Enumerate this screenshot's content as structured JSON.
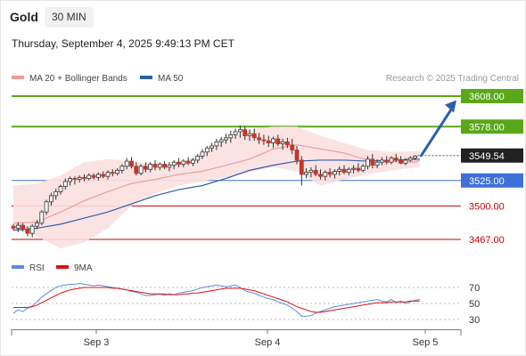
{
  "header": {
    "symbol": "Gold",
    "timeframe": "30 MIN",
    "datetime": "Thursday, September 4, 2025 9:49:13 PM CET"
  },
  "copyright": "Research © 2025 Trading Central",
  "colors": {
    "candle_up": "#ffffff",
    "candle_down": "#c0392b",
    "candle_wick": "#333333",
    "ma20": "#f29a9a",
    "bands_fill": "#fbe0e0",
    "ma50": "#2d5fa8",
    "resistance": "#5aa719",
    "support": "#3f6fd8",
    "pivot": "#cc0000",
    "arrow": "#2d5fa8",
    "rsi": "#5b8ee0",
    "rsi_ma": "#dd1111",
    "last_price_bg": "#222222"
  },
  "chart_data": [
    {
      "type": "candlestick",
      "title": "Gold 30 MIN",
      "legend": [
        {
          "name": "MA 20 + Bollinger Bands",
          "color": "#f29a9a"
        },
        {
          "name": "MA 50",
          "color": "#2d5fa8"
        }
      ],
      "legend_placement": "top-left",
      "x_ticks": [
        "Sep 3",
        "Sep 4",
        "Sep 5"
      ],
      "ylim": [
        3450,
        3620
      ],
      "last_price": 3549.54,
      "levels": [
        {
          "value": 3608.0,
          "label": "3608.00",
          "kind": "resistance"
        },
        {
          "value": 3578.0,
          "label": "3578.00",
          "kind": "resistance"
        },
        {
          "value": 3525.0,
          "label": "3525.00",
          "kind": "support"
        },
        {
          "value": 3500.0,
          "label": "3500.00",
          "kind": "pivot"
        },
        {
          "value": 3467.0,
          "label": "3467.00",
          "kind": "pivot"
        }
      ],
      "forecast_arrow": {
        "from": 3549.5,
        "to": 3604
      },
      "candles": [
        [
          3480,
          3482,
          3476,
          3478
        ],
        [
          3478,
          3484,
          3474,
          3481
        ],
        [
          3481,
          3483,
          3475,
          3477
        ],
        [
          3477,
          3480,
          3470,
          3473
        ],
        [
          3473,
          3482,
          3469,
          3480
        ],
        [
          3480,
          3486,
          3477,
          3483
        ],
        [
          3483,
          3496,
          3481,
          3494
        ],
        [
          3494,
          3506,
          3491,
          3504
        ],
        [
          3504,
          3513,
          3500,
          3510
        ],
        [
          3510,
          3517,
          3506,
          3514
        ],
        [
          3514,
          3521,
          3511,
          3519
        ],
        [
          3519,
          3527,
          3516,
          3524
        ],
        [
          3524,
          3529,
          3520,
          3527
        ],
        [
          3527,
          3529,
          3521,
          3526
        ],
        [
          3526,
          3530,
          3523,
          3528
        ],
        [
          3528,
          3531,
          3524,
          3527
        ],
        [
          3527,
          3532,
          3525,
          3530
        ],
        [
          3530,
          3532,
          3526,
          3528
        ],
        [
          3528,
          3533,
          3525,
          3531
        ],
        [
          3531,
          3534,
          3527,
          3529
        ],
        [
          3529,
          3535,
          3526,
          3533
        ],
        [
          3533,
          3536,
          3529,
          3532
        ],
        [
          3532,
          3537,
          3530,
          3535
        ],
        [
          3535,
          3541,
          3532,
          3539
        ],
        [
          3539,
          3547,
          3536,
          3544
        ],
        [
          3544,
          3548,
          3537,
          3539
        ],
        [
          3539,
          3543,
          3530,
          3532
        ],
        [
          3532,
          3541,
          3530,
          3539
        ],
        [
          3539,
          3543,
          3533,
          3536
        ],
        [
          3536,
          3543,
          3533,
          3541
        ],
        [
          3541,
          3545,
          3535,
          3538
        ],
        [
          3538,
          3543,
          3535,
          3541
        ],
        [
          3541,
          3544,
          3536,
          3538
        ],
        [
          3538,
          3543,
          3534,
          3540
        ],
        [
          3540,
          3545,
          3536,
          3543
        ],
        [
          3543,
          3547,
          3538,
          3541
        ],
        [
          3541,
          3546,
          3538,
          3544
        ],
        [
          3544,
          3548,
          3540,
          3542
        ],
        [
          3542,
          3547,
          3539,
          3545
        ],
        [
          3545,
          3551,
          3542,
          3549
        ],
        [
          3549,
          3556,
          3546,
          3553
        ],
        [
          3553,
          3559,
          3549,
          3557
        ],
        [
          3557,
          3562,
          3553,
          3559
        ],
        [
          3559,
          3566,
          3555,
          3563
        ],
        [
          3563,
          3568,
          3558,
          3565
        ],
        [
          3565,
          3571,
          3561,
          3567
        ],
        [
          3567,
          3574,
          3562,
          3570
        ],
        [
          3570,
          3576,
          3566,
          3573
        ],
        [
          3573,
          3579,
          3567,
          3575
        ],
        [
          3575,
          3578,
          3565,
          3569
        ],
        [
          3569,
          3575,
          3564,
          3571
        ],
        [
          3571,
          3576,
          3564,
          3567
        ],
        [
          3567,
          3572,
          3561,
          3565
        ],
        [
          3565,
          3570,
          3560,
          3564
        ],
        [
          3564,
          3569,
          3558,
          3562
        ],
        [
          3562,
          3568,
          3557,
          3566
        ],
        [
          3566,
          3570,
          3559,
          3561
        ],
        [
          3561,
          3566,
          3555,
          3563
        ],
        [
          3563,
          3567,
          3557,
          3560
        ],
        [
          3560,
          3566,
          3551,
          3555
        ],
        [
          3555,
          3559,
          3541,
          3545
        ],
        [
          3545,
          3549,
          3520,
          3531
        ],
        [
          3531,
          3537,
          3527,
          3533
        ],
        [
          3533,
          3538,
          3528,
          3535
        ],
        [
          3535,
          3540,
          3529,
          3531
        ],
        [
          3531,
          3536,
          3526,
          3529
        ],
        [
          3529,
          3535,
          3525,
          3533
        ],
        [
          3533,
          3537,
          3528,
          3531
        ],
        [
          3531,
          3536,
          3527,
          3534
        ],
        [
          3534,
          3539,
          3530,
          3536
        ],
        [
          3536,
          3540,
          3531,
          3533
        ],
        [
          3533,
          3538,
          3530,
          3536
        ],
        [
          3536,
          3540,
          3532,
          3537
        ],
        [
          3537,
          3542,
          3533,
          3535
        ],
        [
          3535,
          3541,
          3533,
          3539
        ],
        [
          3539,
          3549,
          3536,
          3546
        ],
        [
          3546,
          3551,
          3537,
          3540
        ],
        [
          3540,
          3546,
          3537,
          3543
        ],
        [
          3543,
          3548,
          3540,
          3545
        ],
        [
          3545,
          3549,
          3541,
          3543
        ],
        [
          3543,
          3549,
          3541,
          3547
        ],
        [
          3547,
          3551,
          3543,
          3545
        ],
        [
          3545,
          3549,
          3541,
          3542
        ],
        [
          3542,
          3547,
          3540,
          3545
        ],
        [
          3545,
          3549,
          3543,
          3547
        ],
        [
          3547,
          3550,
          3545,
          3549
        ]
      ],
      "ma20": [
        [
          0,
          3483
        ],
        [
          5,
          3484
        ],
        [
          10,
          3494
        ],
        [
          15,
          3505
        ],
        [
          20,
          3514
        ],
        [
          25,
          3522
        ],
        [
          30,
          3526
        ],
        [
          35,
          3531
        ],
        [
          40,
          3534
        ],
        [
          45,
          3540
        ],
        [
          50,
          3546
        ],
        [
          55,
          3556
        ],
        [
          60,
          3560
        ],
        [
          65,
          3556
        ],
        [
          70,
          3552
        ],
        [
          75,
          3545
        ],
        [
          80,
          3544
        ],
        [
          85,
          3543
        ],
        [
          86,
          3545
        ]
      ],
      "bollinger_upper": [
        [
          0,
          3520
        ],
        [
          5,
          3522
        ],
        [
          10,
          3530
        ],
        [
          15,
          3543
        ],
        [
          20,
          3546
        ],
        [
          25,
          3544
        ],
        [
          30,
          3540
        ],
        [
          35,
          3542
        ],
        [
          40,
          3552
        ],
        [
          45,
          3565
        ],
        [
          50,
          3575
        ],
        [
          55,
          3578
        ],
        [
          60,
          3578
        ],
        [
          65,
          3569
        ],
        [
          70,
          3562
        ],
        [
          75,
          3555
        ],
        [
          80,
          3553
        ],
        [
          86,
          3554
        ]
      ],
      "bollinger_lower": [
        [
          0,
          3478
        ],
        [
          5,
          3470
        ],
        [
          10,
          3458
        ],
        [
          15,
          3464
        ],
        [
          20,
          3478
        ],
        [
          25,
          3500
        ],
        [
          30,
          3512
        ],
        [
          35,
          3520
        ],
        [
          40,
          3524
        ],
        [
          45,
          3528
        ],
        [
          50,
          3533
        ],
        [
          55,
          3538
        ],
        [
          60,
          3534
        ],
        [
          65,
          3520
        ],
        [
          70,
          3526
        ],
        [
          75,
          3531
        ],
        [
          80,
          3535
        ],
        [
          86,
          3538
        ]
      ],
      "ma50": [
        [
          0,
          3476
        ],
        [
          5,
          3478
        ],
        [
          10,
          3482
        ],
        [
          15,
          3488
        ],
        [
          20,
          3494
        ],
        [
          25,
          3502
        ],
        [
          30,
          3510
        ],
        [
          35,
          3516
        ],
        [
          40,
          3520
        ],
        [
          45,
          3527
        ],
        [
          50,
          3535
        ],
        [
          55,
          3540
        ],
        [
          60,
          3544
        ],
        [
          65,
          3545
        ],
        [
          70,
          3545
        ],
        [
          75,
          3544
        ],
        [
          80,
          3545
        ],
        [
          86,
          3546
        ]
      ]
    },
    {
      "type": "line",
      "title": "RSI",
      "legend": [
        {
          "name": "RSI",
          "color": "#5b8ee0"
        },
        {
          "name": "9MA",
          "color": "#dd1111"
        }
      ],
      "legend_placement": "top-left",
      "ylim": [
        20,
        80
      ],
      "y_ticks": [
        30,
        50,
        70
      ],
      "series": [
        {
          "name": "RSI",
          "values": [
            38,
            42,
            40,
            44,
            47,
            52,
            58,
            62,
            66,
            70,
            72,
            73,
            74,
            74,
            75,
            74,
            73,
            72,
            73,
            72,
            71,
            70,
            69,
            68,
            67,
            65,
            64,
            62,
            60,
            60,
            61,
            62,
            60,
            62,
            61,
            63,
            64,
            65,
            66,
            68,
            70,
            71,
            72,
            73,
            72,
            71,
            72,
            73,
            70,
            66,
            64,
            63,
            60,
            58,
            56,
            55,
            52,
            50,
            48,
            44,
            40,
            34,
            34,
            35,
            38,
            40,
            42,
            44,
            46,
            47,
            48,
            49,
            50,
            51,
            52,
            53,
            54,
            55,
            53,
            52,
            55,
            51,
            53,
            50,
            52,
            54,
            55
          ]
        },
        {
          "name": "9MA",
          "values": [
            45,
            45,
            45,
            45,
            46,
            48,
            51,
            54,
            57,
            60,
            63,
            65,
            67,
            68,
            69,
            70,
            70,
            70,
            70,
            70,
            70,
            69,
            69,
            68,
            67,
            66,
            65,
            64,
            63,
            62,
            62,
            62,
            62,
            61,
            61,
            61,
            62,
            62,
            63,
            63,
            64,
            65,
            66,
            67,
            68,
            69,
            69,
            69,
            69,
            68,
            67,
            66,
            64,
            62,
            60,
            58,
            56,
            54,
            52,
            49,
            46,
            44,
            42,
            40,
            39,
            39,
            40,
            41,
            42,
            43,
            44,
            45,
            46,
            47,
            48,
            49,
            50,
            51,
            51,
            51,
            52,
            52,
            52,
            52,
            53,
            53,
            53
          ]
        }
      ]
    }
  ]
}
